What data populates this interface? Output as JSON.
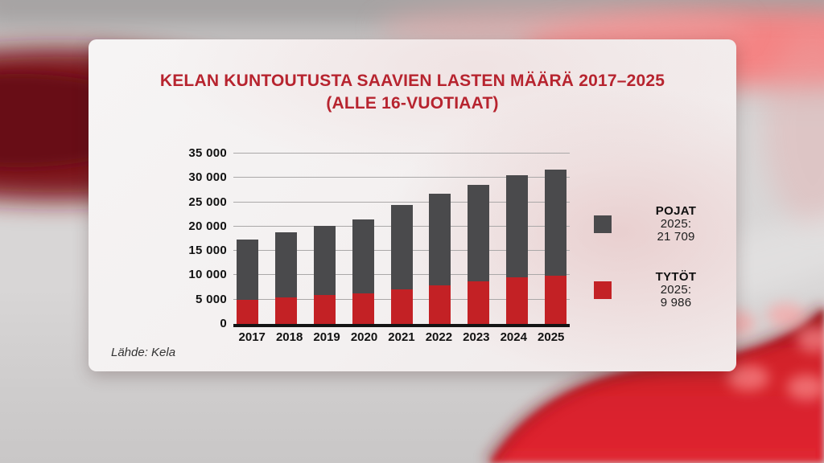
{
  "title": {
    "line1": "KELAN KUNTOUTUSTA SAAVIEN LASTEN MÄÄRÄ 2017–2025",
    "line2": "(ALLE 16-VUOTIAAT)",
    "color": "#b7242f"
  },
  "source": "Lähde: Kela",
  "legend": {
    "entries": [
      {
        "name": "POJAT",
        "year_label": "2025:",
        "value": "21 709",
        "color": "#4a4a4c"
      },
      {
        "name": "TYTÖT",
        "year_label": "2025:",
        "value": "9 986",
        "color": "#c32125"
      }
    ]
  },
  "chart_data": {
    "type": "bar",
    "stacked": true,
    "title": "KELAN KUNTOUTUSTA SAAVIEN LASTEN MÄÄRÄ 2017–2025 (ALLE 16-VUOTIAAT)",
    "categories": [
      "2017",
      "2018",
      "2019",
      "2020",
      "2021",
      "2022",
      "2023",
      "2024",
      "2025"
    ],
    "series": [
      {
        "name": "TYTÖT",
        "color": "#c32125",
        "values": [
          4900,
          5450,
          5900,
          6300,
          7100,
          7900,
          8700,
          9500,
          9986
        ]
      },
      {
        "name": "POJAT",
        "color": "#4a4a4c",
        "values": [
          12400,
          13300,
          14250,
          15100,
          17400,
          18900,
          19850,
          21000,
          21709
        ]
      }
    ],
    "totals": [
      17300,
      18750,
      20150,
      21400,
      24500,
      26800,
      28550,
      30500,
      31695
    ],
    "ylim": [
      0,
      35000
    ],
    "yticks": [
      {
        "value": 0,
        "label": "0"
      },
      {
        "value": 5000,
        "label": "5 000"
      },
      {
        "value": 10000,
        "label": "10 000"
      },
      {
        "value": 15000,
        "label": "15 000"
      },
      {
        "value": 20000,
        "label": "20 000"
      },
      {
        "value": 25000,
        "label": "25 000"
      },
      {
        "value": 30000,
        "label": "30 000"
      },
      {
        "value": 35000,
        "label": "35 000"
      }
    ],
    "grid": true,
    "legend_position": "right",
    "gridline_color": "#aaa8a8",
    "axis_color": "#141414"
  }
}
